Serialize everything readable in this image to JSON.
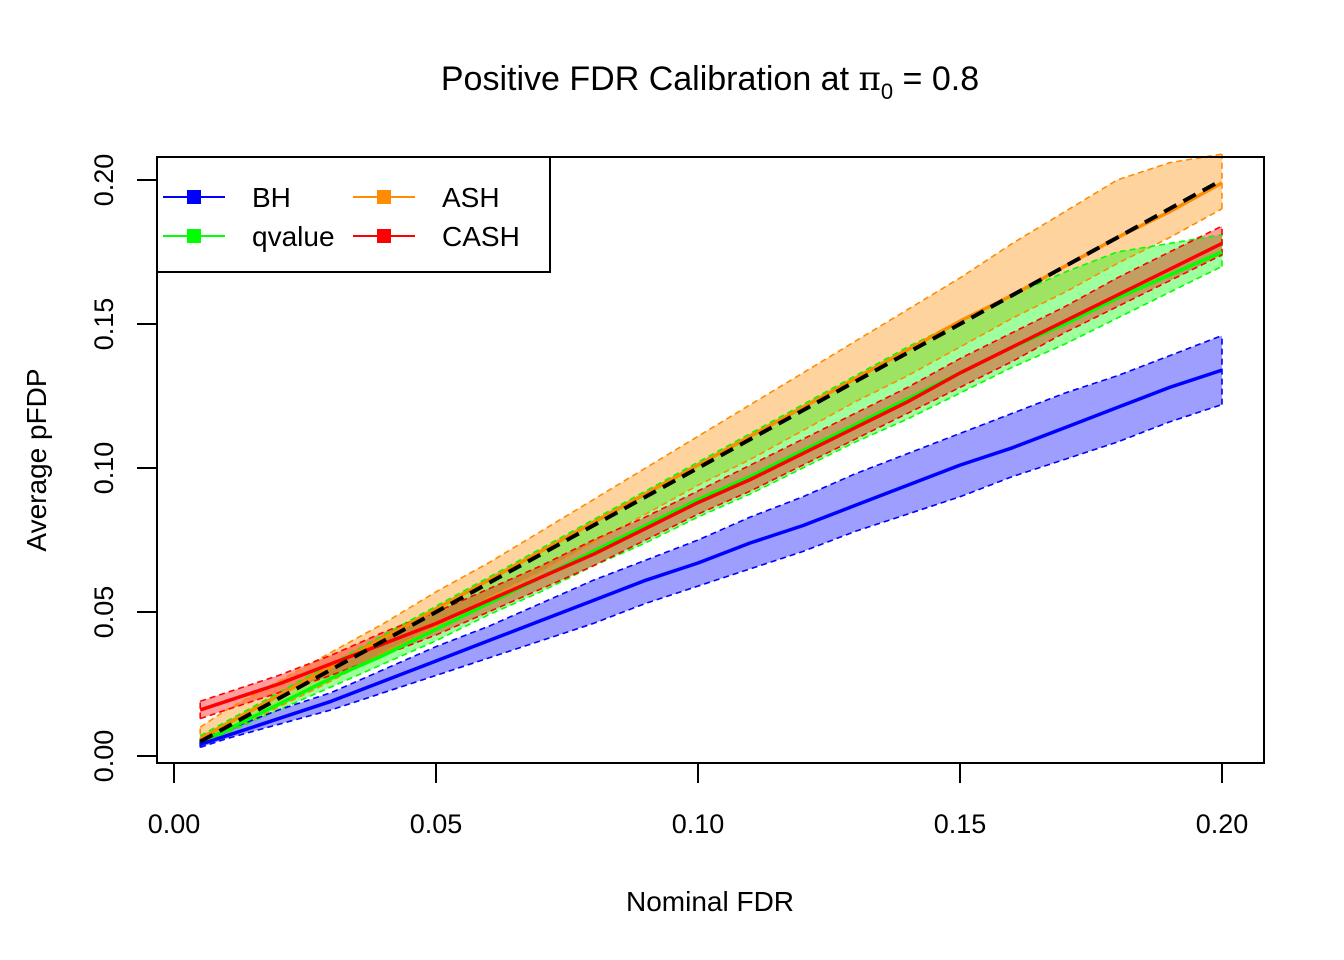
{
  "chart_data": {
    "type": "line",
    "title": {
      "prefix": "Positive FDR Calibration at ",
      "symbol": "π",
      "subscript": "0",
      "suffix": " = 0.8"
    },
    "xlabel": "Nominal FDR",
    "ylabel": "Average pFDP",
    "xlim": [
      0.0,
      0.2
    ],
    "ylim": [
      0.0,
      0.2
    ],
    "x_ticks": [
      0.0,
      0.05,
      0.1,
      0.15,
      0.2
    ],
    "x_tick_labels": [
      "0.00",
      "0.05",
      "0.10",
      "0.15",
      "0.20"
    ],
    "y_ticks": [
      0.0,
      0.05,
      0.1,
      0.15,
      0.2
    ],
    "y_tick_labels": [
      "0.00",
      "0.05",
      "0.10",
      "0.15",
      "0.20"
    ],
    "grid": false,
    "legend_position": "top-left",
    "reference_line": {
      "style": "dashed",
      "color": "#000000",
      "x": [
        0.005,
        0.2
      ],
      "y": [
        0.005,
        0.2
      ]
    },
    "x": [
      0.005,
      0.01,
      0.02,
      0.03,
      0.04,
      0.05,
      0.06,
      0.07,
      0.08,
      0.09,
      0.1,
      0.11,
      0.12,
      0.13,
      0.14,
      0.15,
      0.16,
      0.17,
      0.18,
      0.19,
      0.2
    ],
    "series": [
      {
        "name": "BH",
        "color": "#0000ff",
        "fill": "rgba(0,0,255,0.38)",
        "mean": [
          0.004,
          0.007,
          0.013,
          0.019,
          0.026,
          0.033,
          0.04,
          0.047,
          0.054,
          0.061,
          0.067,
          0.074,
          0.08,
          0.087,
          0.094,
          0.101,
          0.107,
          0.114,
          0.121,
          0.128,
          0.134
        ],
        "lower": [
          0.003,
          0.006,
          0.011,
          0.016,
          0.022,
          0.028,
          0.034,
          0.04,
          0.046,
          0.053,
          0.059,
          0.065,
          0.071,
          0.078,
          0.084,
          0.09,
          0.097,
          0.103,
          0.109,
          0.116,
          0.122
        ],
        "upper": [
          0.006,
          0.009,
          0.016,
          0.022,
          0.03,
          0.038,
          0.045,
          0.053,
          0.061,
          0.068,
          0.075,
          0.083,
          0.09,
          0.098,
          0.105,
          0.112,
          0.119,
          0.126,
          0.132,
          0.139,
          0.146
        ]
      },
      {
        "name": "qvalue",
        "color": "#00ff00",
        "fill": "rgba(0,255,0,0.38)",
        "mean": [
          0.005,
          0.009,
          0.018,
          0.027,
          0.035,
          0.044,
          0.053,
          0.062,
          0.071,
          0.08,
          0.089,
          0.097,
          0.106,
          0.115,
          0.124,
          0.133,
          0.142,
          0.15,
          0.159,
          0.167,
          0.175
        ],
        "lower": [
          0.004,
          0.008,
          0.016,
          0.024,
          0.032,
          0.04,
          0.049,
          0.057,
          0.066,
          0.074,
          0.083,
          0.091,
          0.1,
          0.109,
          0.117,
          0.126,
          0.135,
          0.143,
          0.152,
          0.161,
          0.17
        ],
        "upper": [
          0.007,
          0.012,
          0.022,
          0.032,
          0.042,
          0.052,
          0.062,
          0.072,
          0.082,
          0.092,
          0.102,
          0.112,
          0.122,
          0.132,
          0.142,
          0.151,
          0.16,
          0.168,
          0.175,
          0.178,
          0.181
        ]
      },
      {
        "name": "ASH",
        "color": "#ff8c00",
        "fill": "rgba(255,140,0,0.38)",
        "mean": [
          0.006,
          0.011,
          0.021,
          0.031,
          0.041,
          0.051,
          0.061,
          0.071,
          0.081,
          0.091,
          0.101,
          0.111,
          0.121,
          0.131,
          0.141,
          0.151,
          0.16,
          0.17,
          0.18,
          0.189,
          0.199
        ],
        "lower": [
          0.004,
          0.008,
          0.017,
          0.026,
          0.036,
          0.045,
          0.055,
          0.064,
          0.074,
          0.084,
          0.094,
          0.103,
          0.113,
          0.123,
          0.132,
          0.142,
          0.152,
          0.161,
          0.171,
          0.18,
          0.19
        ],
        "upper": [
          0.01,
          0.016,
          0.026,
          0.036,
          0.046,
          0.057,
          0.067,
          0.078,
          0.089,
          0.1,
          0.111,
          0.122,
          0.133,
          0.144,
          0.155,
          0.166,
          0.178,
          0.189,
          0.2,
          0.206,
          0.209
        ]
      },
      {
        "name": "CASH",
        "color": "#ff0000",
        "fill": "rgba(255,0,0,0.38)",
        "mean": [
          0.016,
          0.019,
          0.025,
          0.032,
          0.039,
          0.046,
          0.054,
          0.062,
          0.07,
          0.079,
          0.088,
          0.096,
          0.105,
          0.114,
          0.123,
          0.133,
          0.142,
          0.151,
          0.16,
          0.169,
          0.178
        ],
        "lower": [
          0.013,
          0.016,
          0.022,
          0.028,
          0.035,
          0.042,
          0.05,
          0.058,
          0.066,
          0.075,
          0.084,
          0.092,
          0.101,
          0.11,
          0.119,
          0.128,
          0.137,
          0.147,
          0.156,
          0.165,
          0.174
        ],
        "upper": [
          0.019,
          0.022,
          0.028,
          0.035,
          0.043,
          0.05,
          0.058,
          0.066,
          0.075,
          0.083,
          0.092,
          0.101,
          0.11,
          0.119,
          0.128,
          0.138,
          0.147,
          0.156,
          0.166,
          0.175,
          0.184
        ]
      }
    ]
  }
}
